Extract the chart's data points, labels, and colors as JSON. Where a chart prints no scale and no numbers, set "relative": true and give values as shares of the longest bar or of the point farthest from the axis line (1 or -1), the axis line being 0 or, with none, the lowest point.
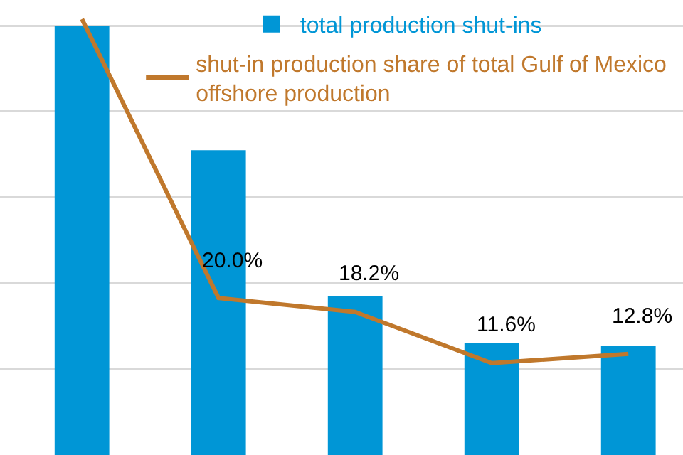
{
  "chart_data": [
    {
      "type": "bar",
      "relative": true,
      "categories": [
        null,
        null,
        null,
        null,
        null
      ],
      "grid": "y",
      "legend": "top",
      "series": [
        {
          "name": "total production shut-ins",
          "color": "#0096d6",
          "values": [
            1,
            0.71,
            0.37,
            0.26,
            0.255
          ]
        }
      ]
    },
    {
      "type": "line",
      "categories": [
        null,
        null,
        null,
        null,
        null
      ],
      "legend": "top",
      "marker": "none",
      "line_style": "solid",
      "series": [
        {
          "name": "shut-in production share of total Gulf of Mexico offshore production",
          "color": "#c0782c",
          "values": [
            56,
            20.0,
            18.2,
            11.6,
            12.8
          ],
          "value_labels": [
            null,
            "20.0%",
            "18.2%",
            "11.6%",
            "12.8%"
          ]
        }
      ]
    }
  ]
}
